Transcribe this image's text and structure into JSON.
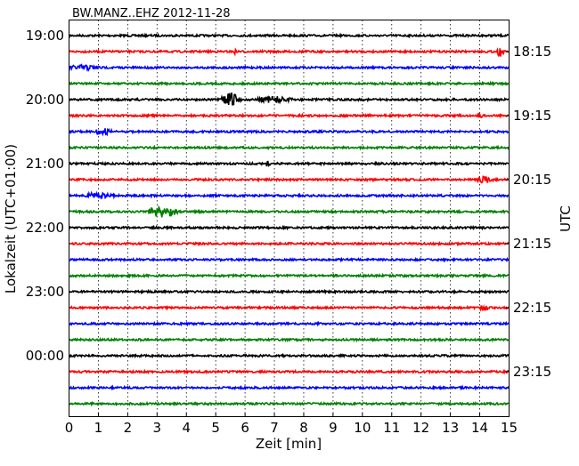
{
  "chart_data": {
    "type": "line",
    "title": "BW.MANZ..EHZ 2012-11-28",
    "xlabel": "Zeit  [min]",
    "ylabel_left": "Lokalzeit (UTC+01:00)",
    "ylabel_right": "UTC",
    "xlim": [
      0,
      15
    ],
    "x_ticks": [
      "0",
      "1",
      "2",
      "3",
      "4",
      "5",
      "6",
      "7",
      "8",
      "9",
      "10",
      "11",
      "12",
      "13",
      "14",
      "15"
    ],
    "grid": "vertical dotted",
    "trace_count": 24,
    "trace_interval_min": 15,
    "colors": [
      "#000000",
      "#ff0000",
      "#0000ff",
      "#008000"
    ],
    "left_ticks": [
      {
        "trace": 0,
        "label": "19:00"
      },
      {
        "trace": 4,
        "label": "20:00"
      },
      {
        "trace": 8,
        "label": "21:00"
      },
      {
        "trace": 12,
        "label": "22:00"
      },
      {
        "trace": 16,
        "label": "23:00"
      },
      {
        "trace": 20,
        "label": "00:00"
      }
    ],
    "right_ticks": [
      {
        "trace": 1,
        "label": "18:15"
      },
      {
        "trace": 5,
        "label": "19:15"
      },
      {
        "trace": 9,
        "label": "20:15"
      },
      {
        "trace": 13,
        "label": "21:15"
      },
      {
        "trace": 17,
        "label": "22:15"
      },
      {
        "trace": 21,
        "label": "23:15"
      }
    ],
    "events": [
      {
        "trace": 1,
        "start": 14.6,
        "end": 15,
        "amp": 5
      },
      {
        "trace": 1,
        "start": 5.6,
        "end": 5.8,
        "amp": 2
      },
      {
        "trace": 2,
        "start": 0,
        "end": 2.1,
        "amp": 2.5
      },
      {
        "trace": 4,
        "start": 5.2,
        "end": 6.4,
        "amp": 7
      },
      {
        "trace": 4,
        "start": 6.4,
        "end": 8.7,
        "amp": 3
      },
      {
        "trace": 5,
        "start": 13.9,
        "end": 14.3,
        "amp": 2.5
      },
      {
        "trace": 6,
        "start": 0.9,
        "end": 2.0,
        "amp": 3
      },
      {
        "trace": 8,
        "start": 6.7,
        "end": 7.0,
        "amp": 2.5
      },
      {
        "trace": 9,
        "start": 13.9,
        "end": 15,
        "amp": 3
      },
      {
        "trace": 10,
        "start": 0.5,
        "end": 2.5,
        "amp": 2.5
      },
      {
        "trace": 11,
        "start": 2.7,
        "end": 4.6,
        "amp": 6
      },
      {
        "trace": 17,
        "start": 14.0,
        "end": 14.6,
        "amp": 3
      }
    ]
  }
}
